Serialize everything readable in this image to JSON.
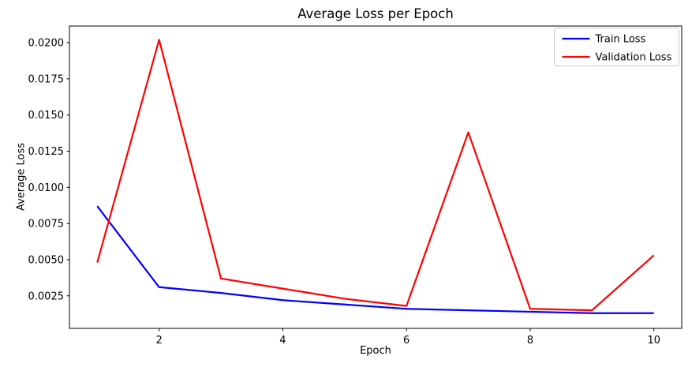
{
  "chart_data": {
    "type": "line",
    "title": "Average Loss per Epoch",
    "xlabel": "Epoch",
    "ylabel": "Average Loss",
    "x": [
      1,
      2,
      3,
      4,
      5,
      6,
      7,
      8,
      9,
      10
    ],
    "series": [
      {
        "name": "Train Loss",
        "color": "#0000ff",
        "values": [
          0.0087,
          0.0031,
          0.0027,
          0.0022,
          0.0019,
          0.0016,
          0.0015,
          0.0014,
          0.0013,
          0.0013
        ]
      },
      {
        "name": "Validation Loss",
        "color": "#ff0000",
        "values": [
          0.0048,
          0.0202,
          0.0037,
          0.003,
          0.0023,
          0.0018,
          0.0138,
          0.0016,
          0.0015,
          0.0053
        ]
      }
    ],
    "xlim": [
      0.55,
      10.45
    ],
    "ylim": [
      0.00025,
      0.02115
    ],
    "x_ticks": {
      "values": [
        2,
        4,
        6,
        8,
        10
      ],
      "labels": [
        "2",
        "4",
        "6",
        "8",
        "10"
      ]
    },
    "y_ticks": {
      "values": [
        0.0025,
        0.005,
        0.0075,
        0.01,
        0.0125,
        0.015,
        0.0175,
        0.02
      ],
      "labels": [
        "0.0025",
        "0.0050",
        "0.0075",
        "0.0100",
        "0.0125",
        "0.0150",
        "0.0175",
        "0.0200"
      ]
    },
    "legend": {
      "position": "upper-right",
      "entries": [
        "Train Loss",
        "Validation Loss"
      ],
      "border_color": "#cccccc",
      "background_color": "#ffffff"
    },
    "grid": false,
    "axis_color": "#000000",
    "background_color": "#ffffff"
  }
}
